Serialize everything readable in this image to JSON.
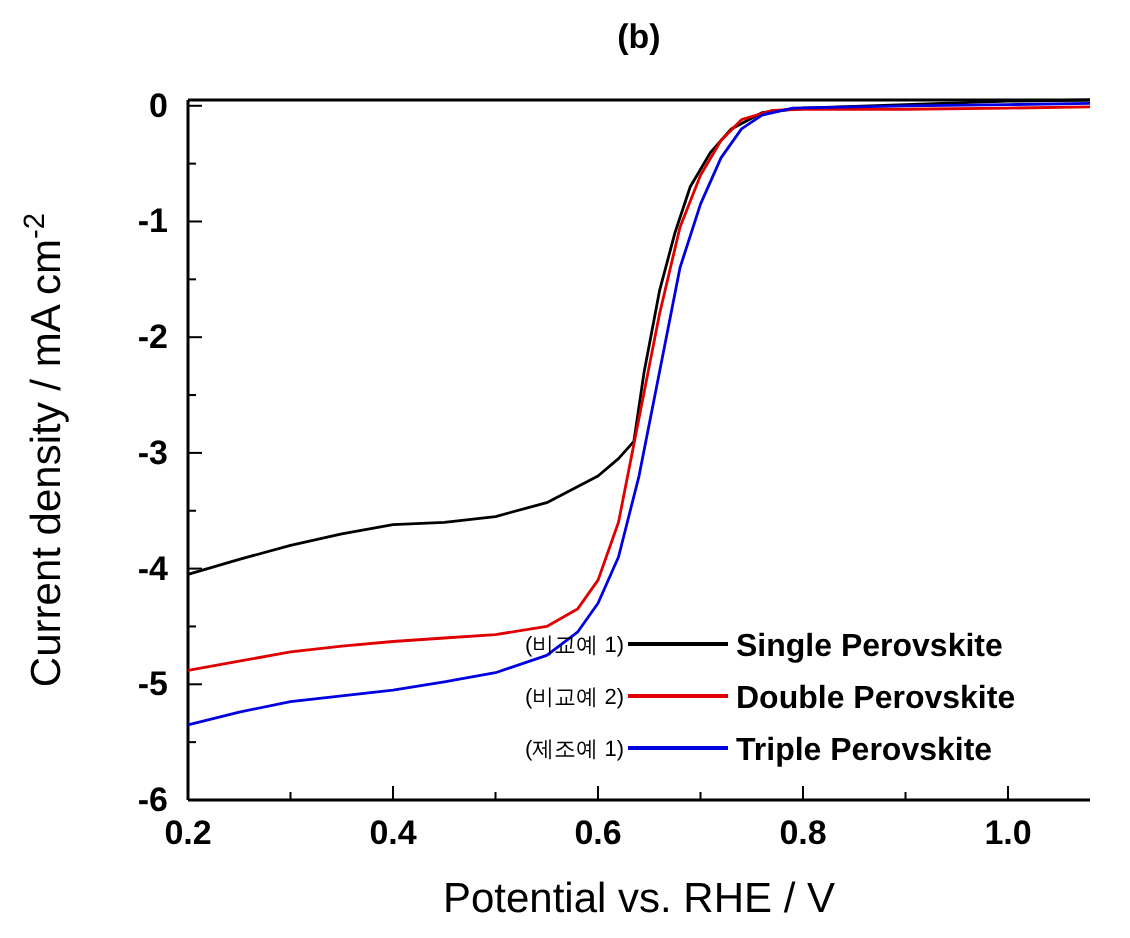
{
  "chart_data": {
    "type": "line",
    "title": "(b)",
    "xlabel": "Potential vs. RHE / V",
    "ylabel": "Current density / mA cm$^{-2}$",
    "xlim": [
      0.2,
      1.08
    ],
    "ylim": [
      -6,
      0.05
    ],
    "xticks": [
      0.2,
      {
        "value": 0.3,
        "label": null
      },
      0.4,
      {
        "value": 0.5,
        "label": null
      },
      0.6,
      {
        "value": 0.7,
        "label": null
      },
      0.8,
      {
        "value": 0.9,
        "label": null
      },
      {
        "value": 1.0,
        "label": "1.0"
      }
    ],
    "yticks": [
      -6,
      {
        "value": -5.5,
        "label": null
      },
      -5,
      {
        "value": -4.5,
        "label": null
      },
      -4,
      {
        "value": -3.5,
        "label": null
      },
      -3,
      {
        "value": -2.5,
        "label": null
      },
      -2,
      {
        "value": -1.5,
        "label": null
      },
      -1,
      {
        "value": -0.5,
        "label": null
      },
      0
    ],
    "legend": "bottom right",
    "marker": "none",
    "line_style": "solid",
    "grid": false,
    "annotations": [
      "(비교예 1)",
      "(비교예 2)",
      "(제조예 1)"
    ],
    "series": [
      {
        "name": "Single Perovskite",
        "color": "#000000",
        "x": [
          0.2,
          0.25,
          0.3,
          0.35,
          0.4,
          0.45,
          0.5,
          0.55,
          0.6,
          0.62,
          0.635,
          0.645,
          0.66,
          0.675,
          0.69,
          0.71,
          0.73,
          0.76,
          0.8,
          0.9,
          1.0,
          1.08
        ],
        "values": [
          -4.05,
          -3.92,
          -3.8,
          -3.7,
          -3.62,
          -3.6,
          -3.55,
          -3.43,
          -3.2,
          -3.05,
          -2.9,
          -2.3,
          -1.6,
          -1.1,
          -0.7,
          -0.4,
          -0.2,
          -0.06,
          -0.02,
          0.01,
          0.04,
          0.05
        ]
      },
      {
        "name": "Double Perovskite",
        "color": "#e00000",
        "x": [
          0.2,
          0.25,
          0.3,
          0.35,
          0.4,
          0.45,
          0.5,
          0.55,
          0.58,
          0.6,
          0.62,
          0.64,
          0.66,
          0.68,
          0.7,
          0.72,
          0.74,
          0.77,
          0.8,
          0.9,
          1.0,
          1.08
        ],
        "values": [
          -4.88,
          -4.8,
          -4.72,
          -4.67,
          -4.63,
          -4.6,
          -4.57,
          -4.5,
          -4.35,
          -4.1,
          -3.6,
          -2.7,
          -1.8,
          -1.05,
          -0.6,
          -0.3,
          -0.12,
          -0.04,
          -0.03,
          -0.03,
          -0.02,
          -0.01
        ]
      },
      {
        "name": "Triple Perovskite",
        "color": "#0000e0",
        "x": [
          0.2,
          0.25,
          0.3,
          0.35,
          0.4,
          0.45,
          0.5,
          0.55,
          0.58,
          0.6,
          0.62,
          0.64,
          0.66,
          0.68,
          0.7,
          0.72,
          0.74,
          0.76,
          0.79,
          0.9,
          1.0,
          1.08
        ],
        "values": [
          -5.35,
          -5.24,
          -5.15,
          -5.1,
          -5.05,
          -4.98,
          -4.9,
          -4.75,
          -4.55,
          -4.3,
          -3.9,
          -3.2,
          -2.3,
          -1.4,
          -0.85,
          -0.45,
          -0.2,
          -0.08,
          -0.02,
          0,
          0.01,
          0.02
        ]
      }
    ]
  }
}
